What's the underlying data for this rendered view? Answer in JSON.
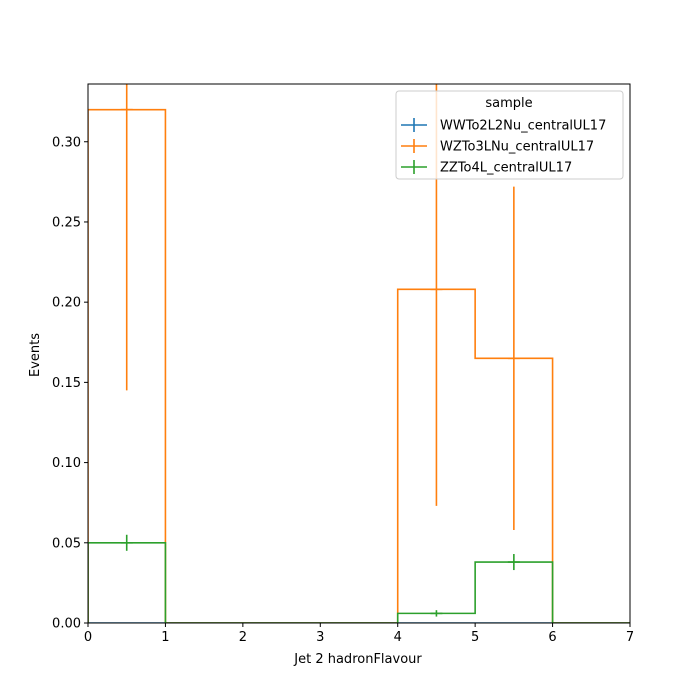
{
  "chart_data": {
    "type": "histogram-step",
    "title": "",
    "xlabel": "Jet 2 hadronFlavour",
    "ylabel": "Events",
    "xlim": [
      0,
      7
    ],
    "ylim": [
      0,
      0.336
    ],
    "xticks": [
      0,
      1,
      2,
      3,
      4,
      5,
      6,
      7
    ],
    "yticks": [
      0.0,
      0.05,
      0.1,
      0.15,
      0.2,
      0.25,
      0.3
    ],
    "grid": false,
    "legend": {
      "title": "sample",
      "placement": "top-right"
    },
    "bin_edges": [
      0,
      1,
      2,
      3,
      4,
      5,
      6,
      7
    ],
    "series": [
      {
        "name": "WWTo2L2Nu_centralUL17",
        "color": "#1f77b4",
        "values": [
          0,
          0,
          0,
          0,
          0,
          0,
          0
        ],
        "errors": [
          0,
          0,
          0,
          0,
          0,
          0,
          0
        ]
      },
      {
        "name": "WZTo3LNu_centralUL17",
        "color": "#ff7f0e",
        "values": [
          0.32,
          0,
          0,
          0,
          0.208,
          0.165,
          0
        ],
        "errors": [
          0.175,
          0,
          0,
          0,
          0.135,
          0.107,
          0
        ]
      },
      {
        "name": "ZZTo4L_centralUL17",
        "color": "#2ca02c",
        "values": [
          0.05,
          0,
          0,
          0,
          0.006,
          0.038,
          0
        ],
        "errors": [
          0.005,
          0,
          0,
          0,
          0.002,
          0.005,
          0
        ]
      }
    ]
  }
}
